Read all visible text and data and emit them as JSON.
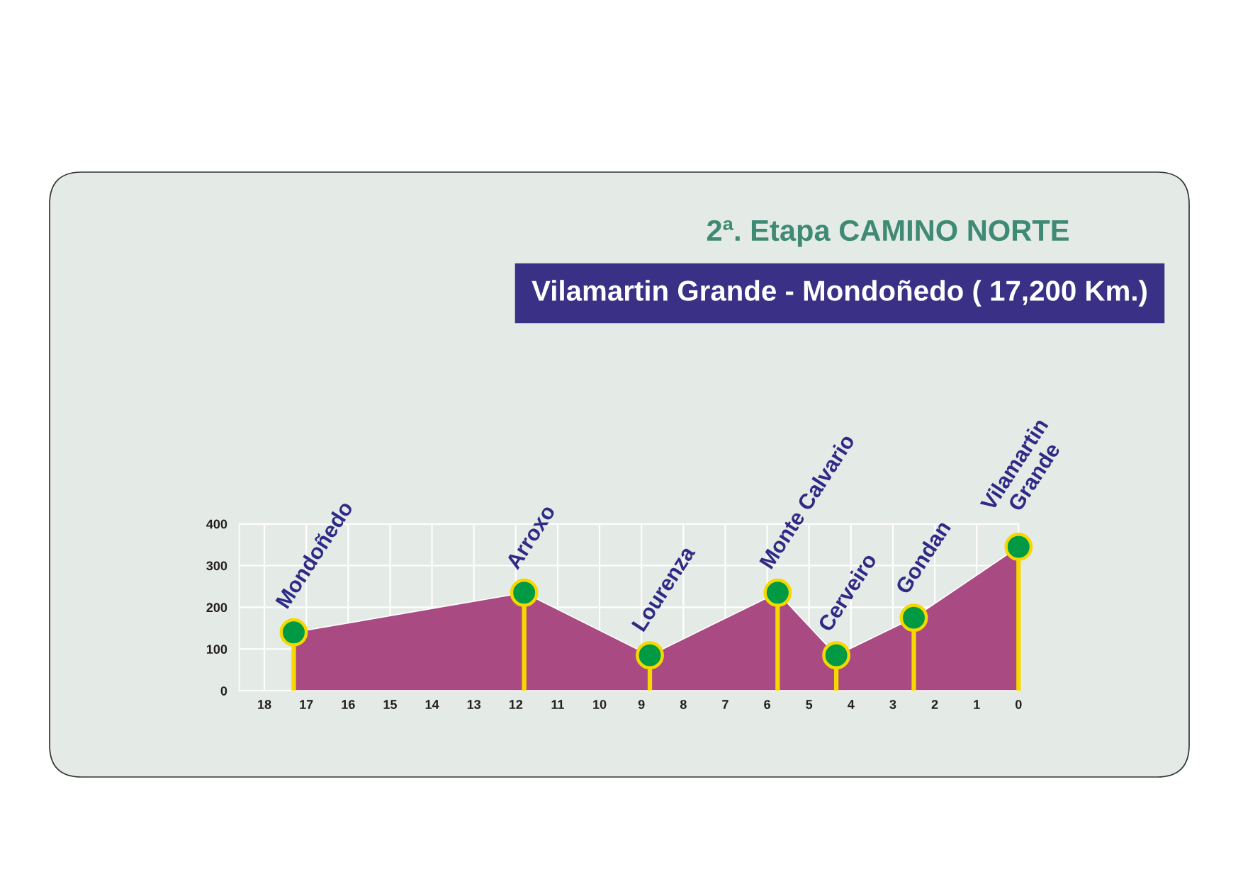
{
  "chart_data": {
    "type": "area",
    "title": "2ª. Etapa CAMINO NORTE",
    "subtitle": "Vilamartin Grande - Mondoñedo ( 17,200 Km.)",
    "series": [
      {
        "color": "#aa4a82",
        "x": [
          17.3,
          11.8,
          8.8,
          5.75,
          4.35,
          2.5,
          0
        ],
        "values": [
          140,
          235,
          85,
          235,
          85,
          175,
          345
        ]
      },
      {
        "type": "lollipop",
        "color": "#f5d800",
        "colors": [
          "#009a44",
          "#009a44",
          "#009a44",
          "#009a44",
          "#009a44",
          "#009a44",
          "#009a44"
        ],
        "marker": "circle",
        "x": [
          17.3,
          11.8,
          8.8,
          5.75,
          4.35,
          2.5,
          0
        ],
        "values": [
          140,
          235,
          85,
          235,
          85,
          175,
          345
        ]
      }
    ],
    "xlim": [
      18.6,
      0
    ],
    "xticks": [
      18,
      17,
      16,
      15,
      14,
      13,
      12,
      11,
      10,
      9,
      8,
      7,
      6,
      5,
      4,
      3,
      2,
      1,
      0
    ],
    "ylim": [
      0,
      400
    ],
    "yticks": [
      0,
      100,
      200,
      300,
      400
    ],
    "grid": true,
    "annotations": [
      {
        "text": "Mondoñedo",
        "x": 17.3,
        "y": 140
      },
      {
        "text": "Arroxo",
        "x": 11.8,
        "y": 235
      },
      {
        "text": "Lourenza",
        "x": 8.8,
        "y": 85
      },
      {
        "text": "Monte Calvario",
        "x": 5.75,
        "y": 235
      },
      {
        "text": "Cerveiro",
        "x": 4.35,
        "y": 85
      },
      {
        "text": "Gondan",
        "x": 2.5,
        "y": 175
      },
      {
        "text": "Vilamartin\nGrande",
        "x": 0,
        "y": 345
      }
    ]
  }
}
